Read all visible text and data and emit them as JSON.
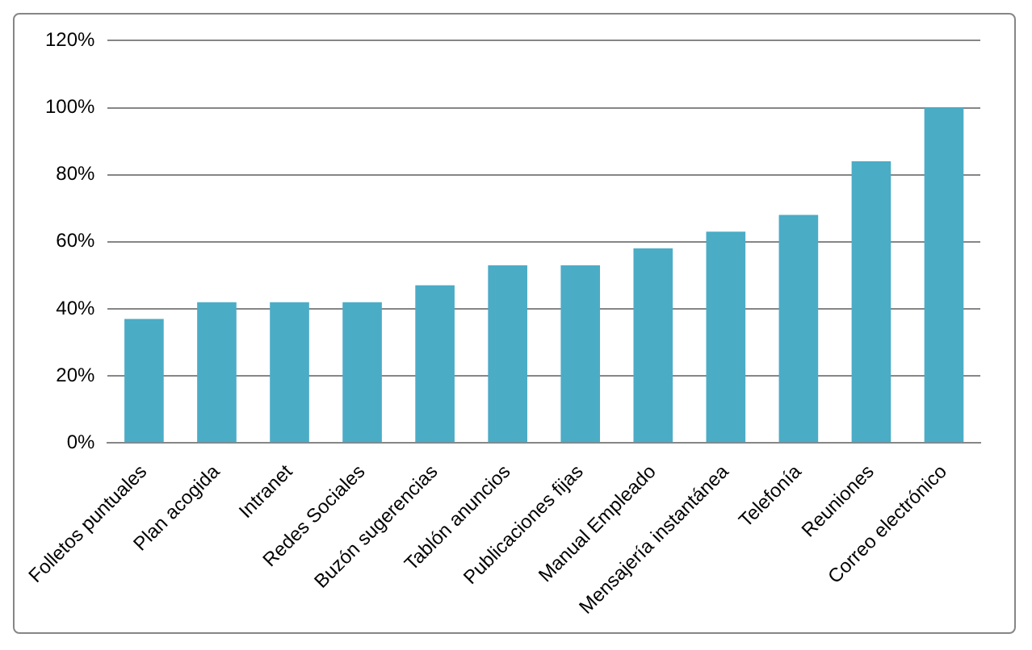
{
  "chart_data": {
    "type": "bar",
    "categories": [
      "Folletos puntuales",
      "Plan acogida",
      "Intranet",
      "Redes Sociales",
      "Buzón sugerencias",
      "Tablón anuncios",
      "Publicaciones fijas",
      "Manual Empleado",
      "Mensajería instantánea",
      "Telefonía",
      "Reuniones",
      "Correo electrónico"
    ],
    "values": [
      37,
      42,
      42,
      42,
      47,
      53,
      53,
      58,
      63,
      68,
      84,
      100
    ],
    "color": "#4bacc6",
    "ylim": [
      0,
      120
    ],
    "yticks": [
      {
        "value": 0,
        "label": "0%"
      },
      {
        "value": 20,
        "label": "20%"
      },
      {
        "value": 40,
        "label": "40%"
      },
      {
        "value": 60,
        "label": "60%"
      },
      {
        "value": 80,
        "label": "80%"
      },
      {
        "value": 100,
        "label": "100%"
      },
      {
        "value": 120,
        "label": "120%"
      }
    ],
    "grid": "y"
  }
}
